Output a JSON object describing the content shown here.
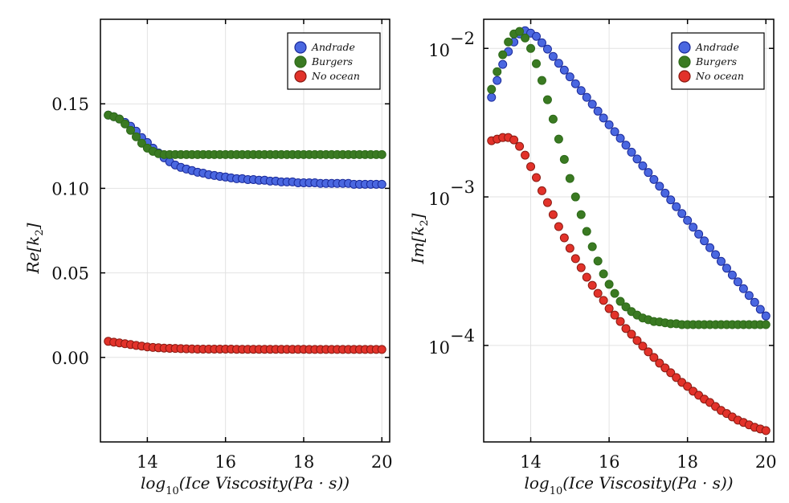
{
  "chart_data": [
    {
      "type": "scatter",
      "id": "real",
      "title": "",
      "xlabel": "log10(Ice Viscosity(Pa · s))",
      "xlabel_parts": {
        "base": "log",
        "sub": "10",
        "rest": "(Ice Viscosity(Pa · s))"
      },
      "ylabel": "Re[k2]",
      "ylabel_parts": {
        "base": "Re[k",
        "sub": "2",
        "rest": "]"
      },
      "yscale": "linear",
      "xlim": [
        12.8,
        20.2
      ],
      "ylim": [
        -0.05,
        0.2
      ],
      "xticks": [
        14,
        16,
        18,
        20
      ],
      "xtick_labels": [
        "14",
        "16",
        "18",
        "20"
      ],
      "yticks": [
        0.0,
        0.05,
        0.1,
        0.15
      ],
      "ytick_labels": [
        "0.00",
        "0.05",
        "0.10",
        "0.15"
      ],
      "grid": true,
      "legend_position": "top-right",
      "x": {
        "start": 13,
        "end": 20,
        "count": 50
      },
      "series": [
        {
          "name": "Andrade",
          "color": "#4a67e0",
          "edge": "#1a2a9a",
          "values": [
            0.1433,
            0.1424,
            0.141,
            0.139,
            0.1367,
            0.1338,
            0.13,
            0.1271,
            0.1238,
            0.121,
            0.1181,
            0.1157,
            0.1138,
            0.1124,
            0.1114,
            0.1105,
            0.1095,
            0.109,
            0.1081,
            0.1076,
            0.1071,
            0.1067,
            0.1062,
            0.1057,
            0.1057,
            0.1052,
            0.1052,
            0.1048,
            0.1048,
            0.1043,
            0.1043,
            0.1038,
            0.1038,
            0.1038,
            0.1033,
            0.1033,
            0.1033,
            0.1033,
            0.1029,
            0.1029,
            0.1029,
            0.1029,
            0.1029,
            0.1029,
            0.1024,
            0.1024,
            0.1024,
            0.1024,
            0.1024,
            0.1024
          ]
        },
        {
          "name": "Burgers",
          "color": "#3a7a22",
          "edge": "#2e6a1a",
          "values": [
            0.1433,
            0.1424,
            0.141,
            0.1381,
            0.1343,
            0.1305,
            0.1267,
            0.1238,
            0.1219,
            0.1205,
            0.12,
            0.12,
            0.12,
            0.12,
            0.12,
            0.12,
            0.12,
            0.12,
            0.12,
            0.12,
            0.12,
            0.12,
            0.12,
            0.12,
            0.12,
            0.12,
            0.12,
            0.12,
            0.12,
            0.12,
            0.12,
            0.12,
            0.12,
            0.12,
            0.12,
            0.12,
            0.12,
            0.12,
            0.12,
            0.12,
            0.12,
            0.12,
            0.12,
            0.12,
            0.12,
            0.12,
            0.12,
            0.12,
            0.12,
            0.12
          ]
        },
        {
          "name": "No ocean",
          "color": "#e2322a",
          "edge": "#8a1a12",
          "values": [
            0.0095,
            0.009,
            0.0086,
            0.0081,
            0.0076,
            0.0071,
            0.0067,
            0.0062,
            0.0059,
            0.0057,
            0.0055,
            0.0054,
            0.0053,
            0.0052,
            0.0051,
            0.005,
            0.0049,
            0.0049,
            0.0049,
            0.0049,
            0.0049,
            0.0049,
            0.0049,
            0.0048,
            0.0048,
            0.0048,
            0.0048,
            0.0048,
            0.0048,
            0.0048,
            0.0048,
            0.0048,
            0.0048,
            0.0048,
            0.0048,
            0.0048,
            0.0047,
            0.0047,
            0.0047,
            0.0047,
            0.0047,
            0.0047,
            0.0047,
            0.0047,
            0.0047,
            0.0047,
            0.0047,
            0.0047,
            0.0047,
            0.0047
          ]
        }
      ]
    },
    {
      "type": "scatter",
      "id": "imag",
      "title": "",
      "xlabel": "log10(Ice Viscosity(Pa · s))",
      "xlabel_parts": {
        "base": "log",
        "sub": "10",
        "rest": "(Ice Viscosity(Pa · s))"
      },
      "ylabel": "Im[k2]",
      "ylabel_parts": {
        "base": "Im[k",
        "sub": "2",
        "rest": "]"
      },
      "yscale": "log10",
      "xlim": [
        12.8,
        20.2
      ],
      "ylim": [
        2.24e-05,
        0.0157
      ],
      "xticks": [
        14,
        16,
        18,
        20
      ],
      "xtick_labels": [
        "14",
        "16",
        "18",
        "20"
      ],
      "yticks": [
        0.0001,
        0.001,
        0.01
      ],
      "ytick_labels": [
        {
          "base": "10",
          "exp": "−4"
        },
        {
          "base": "10",
          "exp": "−3"
        },
        {
          "base": "10",
          "exp": "−2"
        }
      ],
      "grid": true,
      "legend_position": "top-right",
      "x": {
        "start": 13,
        "end": 20,
        "count": 50
      },
      "series": [
        {
          "name": "Andrade",
          "color": "#4a67e0",
          "edge": "#1a2a9a",
          "values": [
            0.00468,
            0.00608,
            0.0078,
            0.00951,
            0.01104,
            0.0125,
            0.01315,
            0.01267,
            0.01205,
            0.01091,
            0.00989,
            0.00883,
            0.00794,
            0.00714,
            0.00643,
            0.00578,
            0.0052,
            0.00468,
            0.00421,
            0.00378,
            0.0034,
            0.00306,
            0.00275,
            0.00248,
            0.00223,
            0.002,
            0.0018,
            0.00162,
            0.00146,
            0.00131,
            0.00118,
            0.00106,
            0.000955,
            0.000859,
            0.000773,
            0.000695,
            0.000625,
            0.000562,
            0.000506,
            0.000455,
            0.000409,
            0.000368,
            0.000331,
            0.000298,
            0.000268,
            0.000241,
            0.000217,
            0.000195,
            0.000175,
            0.000158
          ]
        },
        {
          "name": "Burgers",
          "color": "#3a7a22",
          "edge": "#2e6a1a",
          "values": [
            0.0053,
            0.00697,
            0.00906,
            0.01104,
            0.0125,
            0.013,
            0.01175,
            0.01,
            0.00789,
            0.00608,
            0.00451,
            0.00334,
            0.00245,
            0.00179,
            0.00133,
            0.001,
            0.00076,
            0.000586,
            0.000462,
            0.00037,
            0.000303,
            0.000258,
            0.000224,
            0.000198,
            0.000182,
            0.000169,
            0.00016,
            0.000153,
            0.000149,
            0.000145,
            0.000144,
            0.000142,
            0.00014,
            0.00014,
            0.000138,
            0.000138,
            0.000138,
            0.000138,
            0.000138,
            0.000138,
            0.000138,
            0.000138,
            0.000138,
            0.000138,
            0.000138,
            0.000138,
            0.000138,
            0.000138,
            0.000138,
            0.000138
          ]
        },
        {
          "name": "No ocean",
          "color": "#e2322a",
          "edge": "#8a1a12",
          "values": [
            0.00239,
            0.00245,
            0.00251,
            0.00251,
            0.00242,
            0.00219,
            0.00191,
            0.0016,
            0.00135,
            0.0011,
            0.000916,
            0.00076,
            0.000631,
            0.00053,
            0.000451,
            0.000384,
            0.000334,
            0.000288,
            0.000254,
            0.000224,
            0.000201,
            0.000177,
            0.00016,
            0.000145,
            0.00013,
            0.000119,
            0.000108,
            9.89e-05,
            9.06e-05,
            8.3e-05,
            7.6e-05,
            7.06e-05,
            6.55e-05,
            6.08e-05,
            5.64e-05,
            5.3e-05,
            4.92e-05,
            4.62e-05,
            4.35e-05,
            4.13e-05,
            3.88e-05,
            3.65e-05,
            3.48e-05,
            3.3e-05,
            3.14e-05,
            3.03e-05,
            2.92e-05,
            2.81e-05,
            2.74e-05,
            2.67e-05
          ]
        }
      ]
    }
  ]
}
